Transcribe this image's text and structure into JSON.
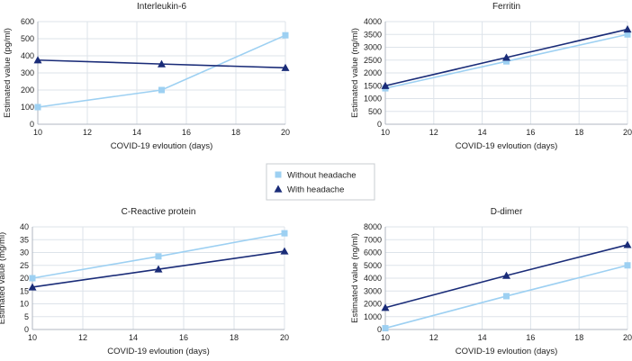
{
  "colors": {
    "without": "#9dd0f2",
    "with": "#1a2c78",
    "grid": "#dde3ea",
    "axis": "#b0b7c0"
  },
  "legend": {
    "items": [
      {
        "name": "Without headache",
        "marker": "square",
        "series_color": "without"
      },
      {
        "name": "With headache",
        "marker": "triangle",
        "series_color": "with"
      }
    ]
  },
  "chart_data": [
    {
      "type": "line",
      "title": "Interleukin-6",
      "xlabel": "COVID-19 evloution (days)",
      "ylabel": "Estimated value (pg/ml)",
      "x": [
        10,
        15,
        20
      ],
      "xlim": [
        10,
        20
      ],
      "xticks": [
        10,
        12,
        14,
        16,
        18,
        20
      ],
      "ylim": [
        0,
        600
      ],
      "yticks": [
        0,
        100,
        200,
        300,
        400,
        500,
        600
      ],
      "series": [
        {
          "name": "Without headache",
          "values": [
            100,
            200,
            520
          ]
        },
        {
          "name": "With headache",
          "values": [
            375,
            352,
            330
          ]
        }
      ]
    },
    {
      "type": "line",
      "title": "Ferritin",
      "xlabel": "COVID-19 evloution (days)",
      "ylabel": "Estimated value (ng/ml)",
      "x": [
        10,
        15,
        20
      ],
      "xlim": [
        10,
        20
      ],
      "xticks": [
        10,
        12,
        14,
        16,
        18,
        20
      ],
      "ylim": [
        0,
        4000
      ],
      "yticks": [
        0,
        500,
        1000,
        1500,
        2000,
        2500,
        3000,
        3500,
        4000
      ],
      "series": [
        {
          "name": "Without headache",
          "values": [
            1400,
            2450,
            3500
          ]
        },
        {
          "name": "With headache",
          "values": [
            1500,
            2600,
            3700
          ]
        }
      ]
    },
    {
      "type": "line",
      "title": "C-Reactive protein",
      "xlabel": "COVID-19 evloution (days)",
      "ylabel": "Estimated value (mg/ml)",
      "x": [
        10,
        15,
        20
      ],
      "xlim": [
        10,
        20
      ],
      "xticks": [
        10,
        12,
        14,
        16,
        18,
        20
      ],
      "ylim": [
        0,
        40
      ],
      "yticks": [
        0,
        5,
        10,
        15,
        20,
        25,
        30,
        35,
        40
      ],
      "series": [
        {
          "name": "Without headache",
          "values": [
            20,
            28.5,
            37.5
          ]
        },
        {
          "name": "With headache",
          "values": [
            16.5,
            23.5,
            30.5
          ]
        }
      ]
    },
    {
      "type": "line",
      "title": "D-dimer",
      "xlabel": "COVID-19 evloution (days)",
      "ylabel": "Estimated value (ng/ml)",
      "x": [
        10,
        15,
        20
      ],
      "xlim": [
        10,
        20
      ],
      "xticks": [
        10,
        12,
        14,
        16,
        18,
        20
      ],
      "ylim": [
        0,
        8000
      ],
      "yticks": [
        0,
        1000,
        2000,
        3000,
        4000,
        5000,
        6000,
        7000,
        8000
      ],
      "series": [
        {
          "name": "Without headache",
          "values": [
            100,
            2600,
            5000
          ]
        },
        {
          "name": "With headache",
          "values": [
            1700,
            4200,
            6600
          ]
        }
      ]
    }
  ]
}
